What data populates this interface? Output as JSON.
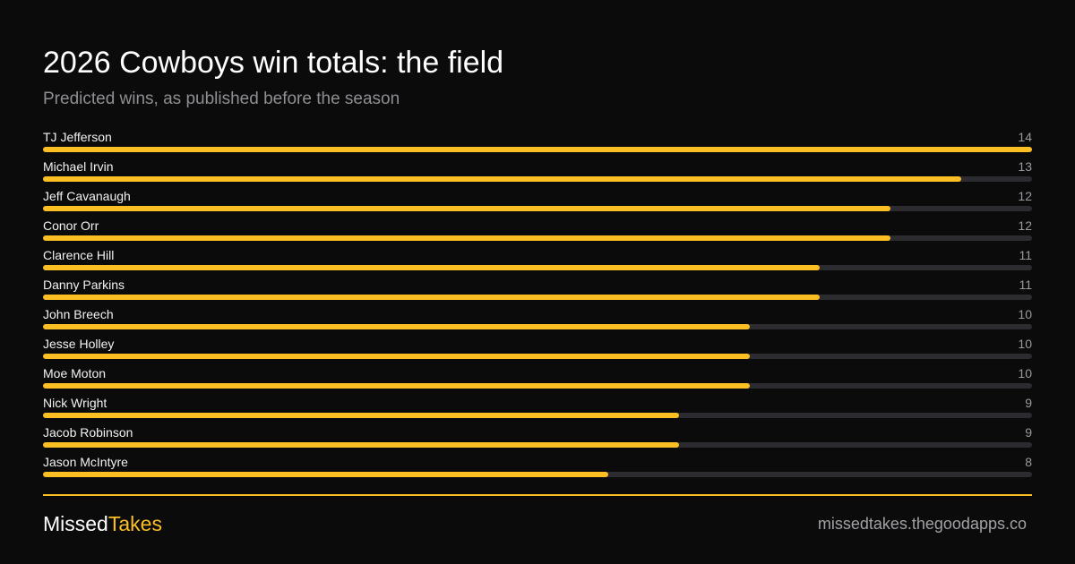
{
  "header": {
    "title": "2026 Cowboys win totals: the field",
    "subtitle": "Predicted wins, as published before the season"
  },
  "chart_data": {
    "type": "bar",
    "orientation": "horizontal",
    "title": "2026 Cowboys win totals: the field",
    "subtitle": "Predicted wins, as published before the season",
    "xlim": [
      0,
      14
    ],
    "grid": false,
    "legend": "none",
    "bar_color": "#fbbf24",
    "track_color": "#2c2c30",
    "categories": [
      "TJ Jefferson",
      "Michael Irvin",
      "Jeff Cavanaugh",
      "Conor Orr",
      "Clarence Hill",
      "Danny Parkins",
      "John Breech",
      "Jesse Holley",
      "Moe Moton",
      "Nick Wright",
      "Jacob Robinson",
      "Jason McIntyre"
    ],
    "values": [
      14,
      13,
      12,
      12,
      11,
      11,
      10,
      10,
      10,
      9,
      9,
      8
    ]
  },
  "footer": {
    "brand_part1": "Missed",
    "brand_part2": "Takes",
    "site": "missedtakes.thegoodapps.co"
  },
  "colors": {
    "background": "#0b0b0b",
    "accent": "#fbbf24",
    "muted_text": "#8e8e93"
  }
}
